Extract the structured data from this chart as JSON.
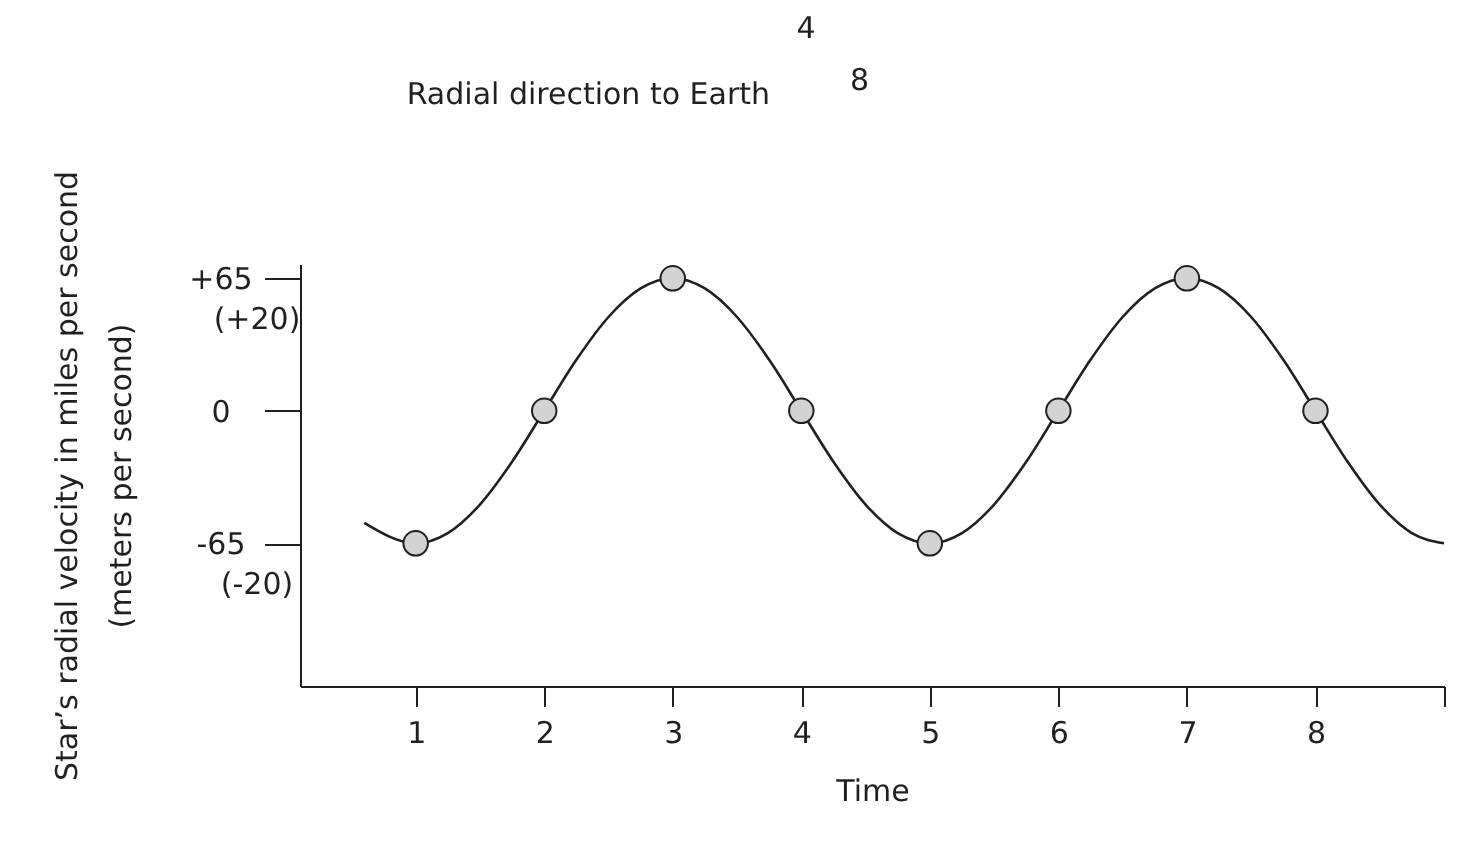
{
  "chart_data": {
    "type": "line",
    "xlabel": "Time",
    "ylabel": "Star’s radial velocity in miles per second\n(meters per second)",
    "annotations": [
      "4",
      "8",
      "Radial direction to Earth"
    ],
    "xlim": [
      0.1,
      9
    ],
    "xticks": [
      1,
      2,
      3,
      4,
      5,
      6,
      7,
      8,
      {
        "value": 9,
        "label": null
      }
    ],
    "ylim": [
      -135,
      72
    ],
    "yticks": [
      {
        "value": 65,
        "label": "+65"
      },
      0,
      -65
    ],
    "y2lim": [
      -35.5,
      28.2
    ],
    "y2ticks": [
      {
        "value": 20,
        "label": "(+20)"
      },
      {
        "value": -20,
        "label": "(-20)"
      }
    ],
    "grid": false,
    "series": [
      {
        "type": "line",
        "color": "#231f20",
        "line_style": "solid",
        "x": [
          0.6,
          1,
          1.25,
          1.5,
          1.75,
          2,
          2.25,
          2.5,
          2.75,
          3,
          3.25,
          3.5,
          3.75,
          4,
          4.25,
          4.5,
          4.75,
          5,
          5.25,
          5.5,
          5.75,
          6,
          6.25,
          6.5,
          6.75,
          7,
          7.25,
          7.5,
          7.75,
          8,
          8.25,
          8.5,
          8.75,
          9
        ],
        "values": [
          -55,
          -65,
          -60,
          -46,
          -25,
          0,
          25,
          46,
          60,
          65,
          60,
          46,
          25,
          0,
          -25,
          -46,
          -60,
          -65,
          -60,
          -46,
          -25,
          0,
          25,
          46,
          60,
          65,
          60,
          46,
          25,
          0,
          -25,
          -46,
          -60,
          -65
        ]
      },
      {
        "type": "scatter",
        "color": "#d3d3d3",
        "marker": "circle",
        "x": [
          1,
          2,
          3,
          4,
          5,
          6,
          7,
          8
        ],
        "values": [
          -65,
          0,
          65,
          0,
          -65,
          0,
          65,
          0
        ]
      }
    ]
  }
}
